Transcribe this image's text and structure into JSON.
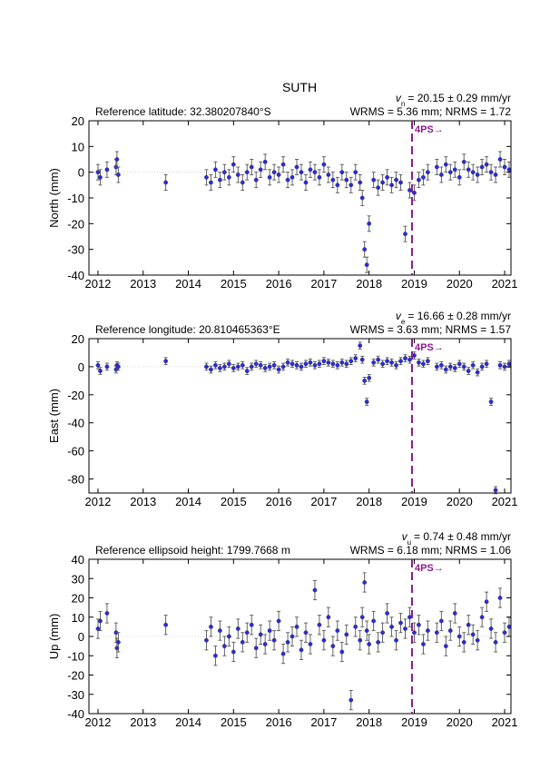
{
  "chart_data": [
    {
      "type": "scatter",
      "title": "SUTH",
      "annotation": "Reference latitude: 32.380207840°S",
      "velocity": {
        "symbol": "v",
        "component": "n",
        "text": "= 20.15 ± 0.29 mm/yr"
      },
      "stats": "WRMS = 5.36 mm; NRMS = 1.72",
      "event_x": 2018.95,
      "event_label": "4PS→",
      "event_color": "#8b1a8b",
      "y_label": "North (mm)",
      "xlim": [
        2011.8,
        2021.14
      ],
      "xticks": [
        2012,
        2013,
        2014,
        2015,
        2016,
        2017,
        2018,
        2019,
        2020,
        2021
      ],
      "ylim": [
        -40,
        20
      ],
      "yticks": [
        -40,
        -30,
        -20,
        -10,
        0,
        10,
        20
      ],
      "error": 3,
      "error_color": "#555555",
      "x": [
        2012.0,
        2012.05,
        2012.2,
        2012.4,
        2012.42,
        2012.45,
        2013.5,
        2014.4,
        2014.5,
        2014.6,
        2014.7,
        2014.8,
        2014.9,
        2015.0,
        2015.1,
        2015.2,
        2015.3,
        2015.4,
        2015.5,
        2015.6,
        2015.7,
        2015.8,
        2015.9,
        2016.0,
        2016.1,
        2016.2,
        2016.3,
        2016.4,
        2016.5,
        2016.6,
        2016.7,
        2016.8,
        2016.9,
        2017.0,
        2017.1,
        2017.2,
        2017.3,
        2017.4,
        2017.5,
        2017.6,
        2017.7,
        2017.8,
        2017.85,
        2017.9,
        2017.95,
        2018.0,
        2018.1,
        2018.2,
        2018.3,
        2018.4,
        2018.5,
        2018.6,
        2018.7,
        2018.8,
        2018.9,
        2019.0,
        2019.1,
        2019.2,
        2019.3,
        2019.5,
        2019.6,
        2019.7,
        2019.8,
        2019.9,
        2020.0,
        2020.1,
        2020.2,
        2020.3,
        2020.4,
        2020.5,
        2020.6,
        2020.7,
        2020.8,
        2020.9,
        2021.0,
        2021.1
      ],
      "series": [
        {
          "color": "#2a2ae0",
          "values": [
            0,
            -2,
            1,
            2,
            5,
            -1,
            -4,
            -2,
            -4,
            1,
            -3,
            0,
            -2,
            3,
            -1,
            -4,
            0,
            2,
            -3,
            1,
            4,
            -2,
            0,
            -1,
            3,
            -3,
            -2,
            2,
            0,
            -4,
            1,
            0,
            -2,
            3,
            -1,
            -3,
            -5,
            0,
            -3,
            -5,
            0,
            -4,
            -10,
            -30,
            -36,
            -20,
            -3,
            -6,
            -4,
            -2,
            -5,
            -3,
            -4,
            -24,
            -7,
            -8,
            -3,
            -2,
            0,
            2,
            -1,
            3,
            0,
            1,
            -2,
            4,
            1,
            0,
            -1,
            2,
            3,
            0,
            -1,
            5,
            2,
            1
          ]
        }
      ]
    },
    {
      "type": "scatter",
      "annotation": "Reference longitude: 20.810465363°E",
      "velocity": {
        "symbol": "v",
        "component": "e",
        "text": "= 16.66 ± 0.28 mm/yr"
      },
      "stats": "WRMS = 3.63 mm; NRMS = 1.57",
      "event_x": 2018.95,
      "event_label": "4PS→",
      "event_color": "#8b1a8b",
      "y_label": "East (mm)",
      "xlim": [
        2011.8,
        2021.14
      ],
      "xticks": [
        2012,
        2013,
        2014,
        2015,
        2016,
        2017,
        2018,
        2019,
        2020,
        2021
      ],
      "ylim": [
        -90,
        20
      ],
      "yticks": [
        -80,
        -60,
        -40,
        -20,
        0,
        20
      ],
      "error": 2.5,
      "error_color": "#555555",
      "x": [
        2012.0,
        2012.05,
        2012.2,
        2012.4,
        2012.42,
        2012.45,
        2013.5,
        2014.4,
        2014.5,
        2014.6,
        2014.7,
        2014.8,
        2014.9,
        2015.0,
        2015.1,
        2015.2,
        2015.3,
        2015.4,
        2015.5,
        2015.6,
        2015.7,
        2015.8,
        2015.9,
        2016.0,
        2016.1,
        2016.2,
        2016.3,
        2016.4,
        2016.5,
        2016.6,
        2016.7,
        2016.8,
        2016.9,
        2017.0,
        2017.1,
        2017.2,
        2017.3,
        2017.4,
        2017.5,
        2017.6,
        2017.7,
        2017.8,
        2017.85,
        2017.9,
        2017.95,
        2018.0,
        2018.1,
        2018.2,
        2018.3,
        2018.4,
        2018.5,
        2018.6,
        2018.7,
        2018.8,
        2018.9,
        2019.0,
        2019.1,
        2019.2,
        2019.3,
        2019.5,
        2019.6,
        2019.7,
        2019.8,
        2019.9,
        2020.0,
        2020.1,
        2020.2,
        2020.3,
        2020.4,
        2020.5,
        2020.6,
        2020.7,
        2020.8,
        2020.9,
        2021.0,
        2021.1
      ],
      "series": [
        {
          "color": "#2a2ae0",
          "values": [
            1,
            -3,
            0,
            -2,
            1,
            0,
            4,
            0,
            -2,
            1,
            -1,
            0,
            2,
            -1,
            0,
            1,
            -3,
            0,
            2,
            1,
            -1,
            0,
            1,
            -2,
            0,
            3,
            2,
            1,
            0,
            2,
            3,
            1,
            2,
            4,
            3,
            2,
            1,
            3,
            2,
            4,
            6,
            15,
            5,
            -10,
            -25,
            -8,
            3,
            5,
            2,
            4,
            3,
            1,
            4,
            6,
            5,
            8,
            3,
            2,
            4,
            0,
            1,
            -2,
            0,
            -1,
            2,
            0,
            -3,
            1,
            -4,
            0,
            2,
            -25,
            -88,
            1,
            0,
            2
          ]
        }
      ]
    },
    {
      "type": "scatter",
      "annotation": "Reference ellipsoid height: 1799.7668 m",
      "velocity": {
        "symbol": "v",
        "component": "u",
        "text": "= 0.74 ± 0.48 mm/yr"
      },
      "stats": "WRMS = 6.18 mm; NRMS = 1.06",
      "event_x": 2018.95,
      "event_label": "4PS→",
      "event_color": "#8b1a8b",
      "y_label": "Up (mm)",
      "xlim": [
        2011.8,
        2021.14
      ],
      "xticks": [
        2012,
        2013,
        2014,
        2015,
        2016,
        2017,
        2018,
        2019,
        2020,
        2021
      ],
      "ylim": [
        -40,
        40
      ],
      "yticks": [
        -40,
        -30,
        -20,
        -10,
        0,
        10,
        20,
        30,
        40
      ],
      "error": 5,
      "error_color": "#555555",
      "x": [
        2012.0,
        2012.05,
        2012.2,
        2012.4,
        2012.42,
        2012.45,
        2013.5,
        2014.4,
        2014.5,
        2014.6,
        2014.7,
        2014.8,
        2014.9,
        2015.0,
        2015.1,
        2015.2,
        2015.3,
        2015.4,
        2015.5,
        2015.6,
        2015.7,
        2015.8,
        2015.9,
        2016.0,
        2016.1,
        2016.2,
        2016.3,
        2016.4,
        2016.5,
        2016.6,
        2016.7,
        2016.8,
        2016.9,
        2017.0,
        2017.1,
        2017.2,
        2017.3,
        2017.4,
        2017.5,
        2017.6,
        2017.7,
        2017.8,
        2017.85,
        2017.9,
        2017.95,
        2018.0,
        2018.1,
        2018.2,
        2018.3,
        2018.4,
        2018.5,
        2018.6,
        2018.7,
        2018.8,
        2018.9,
        2019.0,
        2019.1,
        2019.2,
        2019.3,
        2019.5,
        2019.6,
        2019.7,
        2019.8,
        2019.9,
        2020.0,
        2020.1,
        2020.2,
        2020.3,
        2020.4,
        2020.5,
        2020.6,
        2020.7,
        2020.8,
        2020.9,
        2021.0,
        2021.1
      ],
      "series": [
        {
          "color": "#2a2ae0",
          "values": [
            4,
            8,
            12,
            2,
            -6,
            -3,
            6,
            -2,
            5,
            -10,
            3,
            -5,
            0,
            -8,
            4,
            -3,
            2,
            6,
            -6,
            1,
            -4,
            3,
            -2,
            8,
            -9,
            -3,
            0,
            5,
            -7,
            2,
            -4,
            24,
            6,
            -2,
            10,
            -5,
            3,
            -8,
            1,
            -33,
            5,
            -2,
            10,
            28,
            3,
            -4,
            8,
            -3,
            2,
            12,
            5,
            -2,
            7,
            4,
            10,
            2,
            6,
            -4,
            3,
            2,
            8,
            -5,
            3,
            12,
            0,
            -3,
            6,
            1,
            -2,
            10,
            18,
            4,
            -3,
            20,
            2,
            5
          ]
        }
      ]
    }
  ]
}
